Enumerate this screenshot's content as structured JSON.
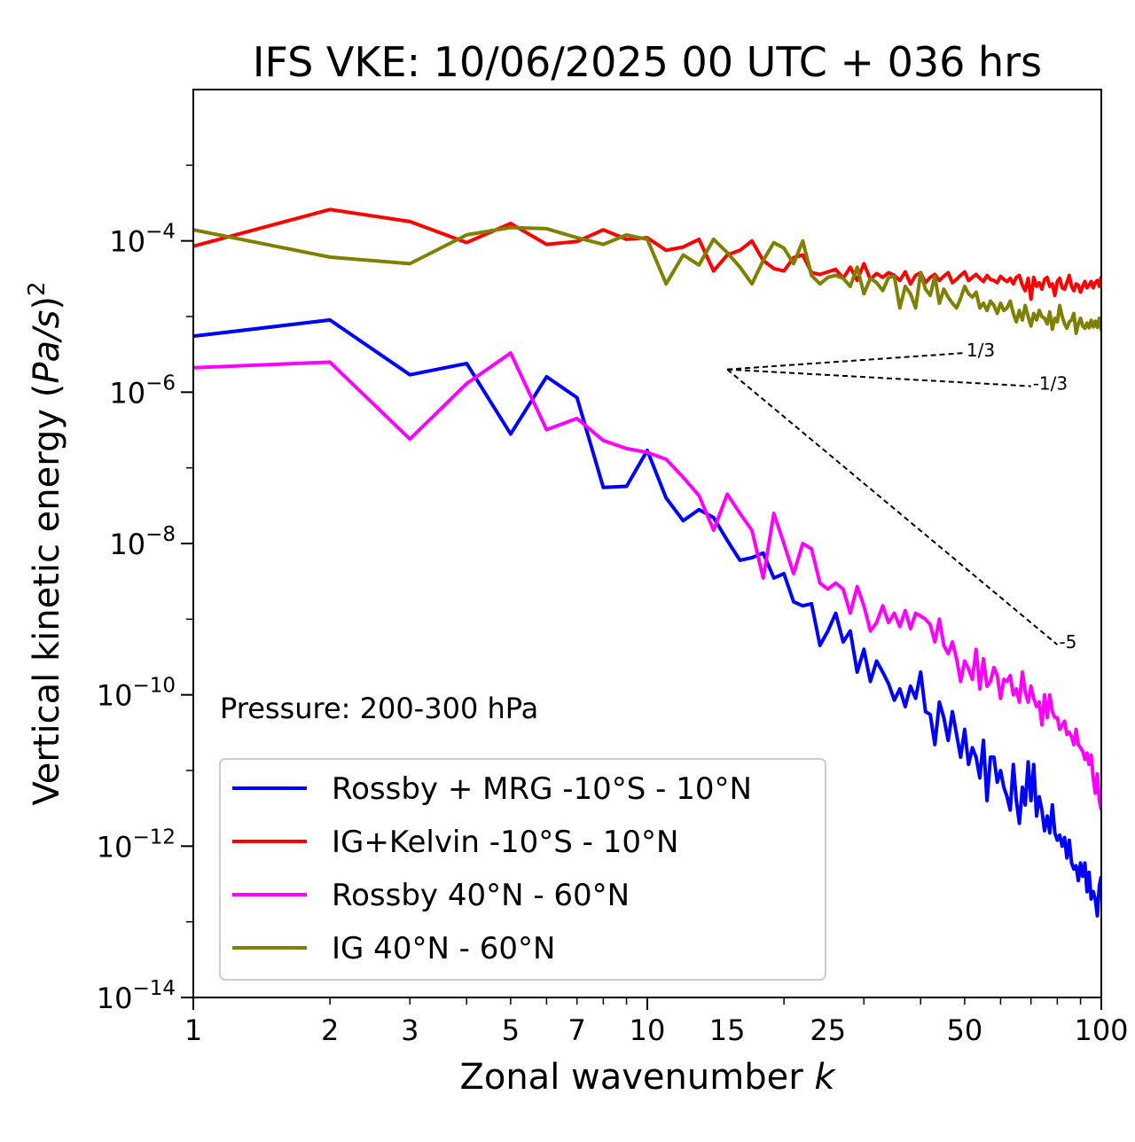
{
  "chart_data": {
    "type": "line",
    "title": "IFS VKE: 10/06/2025 00 UTC + 036 hrs",
    "xlabel_text": "Zonal wavenumber ",
    "xlabel_var": "k",
    "ylabel_text": "Vertical kinetic energy (",
    "ylabel_var": "Pa/s",
    "ylabel_close": ")",
    "ylabel_exp": "2",
    "x_scale": "log",
    "y_scale": "log",
    "xlim": [
      1,
      100
    ],
    "ylim": [
      1e-14,
      0.01
    ],
    "x_ticks": [
      {
        "value": 1,
        "label": "1"
      },
      {
        "value": 2,
        "label": "2"
      },
      {
        "value": 3,
        "label": "3"
      },
      {
        "value": 5,
        "label": "5"
      },
      {
        "value": 7,
        "label": "7"
      },
      {
        "value": 10,
        "label": "10"
      },
      {
        "value": 15,
        "label": "15"
      },
      {
        "value": 25,
        "label": "25"
      },
      {
        "value": 50,
        "label": "50"
      },
      {
        "value": 100,
        "label": "100"
      }
    ],
    "y_ticks": [
      {
        "exponent": -4,
        "base": "10",
        "exp": "−4"
      },
      {
        "exponent": -6,
        "base": "10",
        "exp": "−6"
      },
      {
        "exponent": -8,
        "base": "10",
        "exp": "−8"
      },
      {
        "exponent": -10,
        "base": "10",
        "exp": "−10"
      },
      {
        "exponent": -12,
        "base": "10",
        "exp": "−12"
      },
      {
        "exponent": -14,
        "base": "10",
        "exp": "−14"
      }
    ],
    "annotation": "Pressure: 200-300 hPa",
    "legend_position": "lower-left",
    "grid": false,
    "reference_slopes": [
      {
        "label": "1/3",
        "start": [
          15,
          2e-06
        ],
        "end": [
          50,
          3.3e-06
        ]
      },
      {
        "label": "-1/3",
        "start": [
          15,
          2e-06
        ],
        "end": [
          70,
          1.2e-06
        ]
      },
      {
        "label": "-5",
        "start": [
          15,
          2e-06
        ],
        "end": [
          80,
          4.6e-10
        ]
      }
    ],
    "series": [
      {
        "name": "Rossby + MRG -10°S - 10°N",
        "color": "#0000ff",
        "x": [
          1,
          2,
          3,
          4,
          5,
          6,
          7,
          8,
          9,
          10,
          11,
          12,
          13,
          14,
          15,
          16,
          17,
          18,
          19,
          20,
          21,
          22,
          23,
          24,
          25,
          26,
          27,
          28,
          29,
          30,
          31,
          32,
          33,
          34,
          35,
          36,
          37,
          38,
          39,
          40,
          41,
          42,
          43,
          44,
          45,
          46,
          47,
          48,
          49,
          50,
          51,
          52,
          53,
          54,
          55,
          56,
          57,
          58,
          59,
          60,
          61,
          62,
          63,
          64,
          65,
          66,
          67,
          68,
          69,
          70,
          71,
          72,
          73,
          74,
          75,
          76,
          77,
          78,
          79,
          80,
          81,
          82,
          83,
          84,
          85,
          86,
          87,
          88,
          89,
          90,
          91,
          92,
          93,
          94,
          95,
          96,
          97,
          98,
          99,
          100
        ],
        "y": [
          5.5e-06,
          9e-06,
          1.7e-06,
          2.4e-06,
          2.8e-07,
          1.6e-06,
          8.5e-07,
          5.5e-08,
          5.7e-08,
          1.7e-07,
          4e-08,
          2e-08,
          2.8e-08,
          2.2e-08,
          1.1e-08,
          6e-09,
          6.5e-09,
          7.5e-09,
          3.5e-09,
          4e-09,
          1.7e-09,
          1.5e-09,
          1.6e-09,
          4.5e-10,
          7e-10,
          1.2e-09,
          5e-10,
          7e-10,
          2e-10,
          4e-10,
          1.5e-10,
          2.8e-10,
          2e-10,
          1.4e-10,
          8.5e-11,
          1.2e-10,
          7e-11,
          1.3e-10,
          9e-11,
          2e-10,
          6e-11,
          5.5e-11,
          2.2e-11,
          8e-11,
          5e-11,
          2.5e-11,
          6e-11,
          3e-11,
          1.5e-11,
          3.5e-11,
          1.2e-11,
          2e-11,
          1.5e-11,
          8e-12,
          2.5e-11,
          4e-12,
          1.5e-11,
          1.5e-11,
          7e-12,
          1e-11,
          6e-12,
          4.5e-12,
          3e-12,
          1.2e-11,
          4e-12,
          2e-12,
          6e-12,
          3.5e-12,
          1.3e-11,
          4e-12,
          1.2e-11,
          2.5e-12,
          4.5e-12,
          3e-12,
          1.6e-12,
          2.5e-12,
          1.5e-12,
          3.5e-12,
          1.5e-12,
          1.2e-12,
          1.4e-12,
          1e-12,
          1.3e-12,
          7e-13,
          1.2e-12,
          6e-13,
          5e-13,
          5.5e-13,
          3.5e-13,
          6e-13,
          4e-13,
          6e-13,
          2.5e-13,
          4.5e-13,
          2e-13,
          2.5e-13,
          2e-13,
          1.2e-13,
          3e-13,
          4e-13
        ]
      },
      {
        "name": "IG+Kelvin -10°S - 10°N",
        "color": "#ff0000",
        "x": [
          1,
          2,
          3,
          4,
          5,
          6,
          7,
          8,
          9,
          10,
          11,
          12,
          13,
          14,
          15,
          16,
          17,
          18,
          19,
          20,
          21,
          22,
          23,
          24,
          25,
          26,
          27,
          28,
          29,
          30,
          31,
          32,
          33,
          34,
          35,
          36,
          37,
          38,
          39,
          40,
          41,
          42,
          43,
          44,
          45,
          46,
          47,
          48,
          49,
          50,
          51,
          52,
          53,
          54,
          55,
          56,
          57,
          58,
          59,
          60,
          61,
          62,
          63,
          64,
          65,
          66,
          67,
          68,
          69,
          70,
          71,
          72,
          73,
          74,
          75,
          76,
          77,
          78,
          79,
          80,
          81,
          82,
          83,
          84,
          85,
          86,
          87,
          88,
          89,
          90,
          91,
          92,
          93,
          94,
          95,
          96,
          97,
          98,
          99,
          100
        ],
        "y": [
          8.5e-05,
          0.00026,
          0.00018,
          9.5e-05,
          0.00017,
          9e-05,
          9.8e-05,
          0.00014,
          0.000105,
          0.00011,
          7.5e-05,
          8.3e-05,
          0.000105,
          4e-05,
          6.5e-05,
          7.5e-05,
          0.0001,
          5.5e-05,
          4.3e-05,
          4e-05,
          6e-05,
          6.5e-05,
          3.8e-05,
          3.6e-05,
          3.9e-05,
          4.2e-05,
          3.2e-05,
          4.5e-05,
          3e-05,
          5e-05,
          3.1e-05,
          3.7e-05,
          3.3e-05,
          3.8e-05,
          3.5e-05,
          3e-05,
          3.9e-05,
          2.7e-05,
          3.5e-05,
          3.8e-05,
          2.8e-05,
          3.3e-05,
          3.6e-05,
          3e-05,
          3.4e-05,
          3.8e-05,
          2.8e-05,
          3.1e-05,
          3.5e-05,
          3.9e-05,
          3e-05,
          3.3e-05,
          3.6e-05,
          3.2e-05,
          2.9e-05,
          3.5e-05,
          3.1e-05,
          3e-05,
          2.8e-05,
          3.4e-05,
          3.1e-05,
          2.9e-05,
          3.2e-05,
          2.7e-05,
          3.3e-05,
          3.5e-05,
          2.6e-05,
          2.2e-05,
          3.2e-05,
          1.7e-05,
          3.3e-05,
          2.5e-05,
          2.8e-05,
          2.3e-05,
          3.1e-05,
          3.3e-05,
          2.5e-05,
          2.7e-05,
          1.9e-05,
          2.9e-05,
          3.2e-05,
          2.4e-05,
          2.3e-05,
          2.8e-05,
          3.5e-05,
          2.5e-05,
          2.2e-05,
          2.7e-05,
          2.6e-05,
          2.1e-05,
          2.5e-05,
          2.9e-05,
          2.4e-05,
          2.6e-05,
          2.9e-05,
          2.4e-05,
          2.8e-05,
          3e-05,
          2.5e-05,
          3.4e-05
        ]
      },
      {
        "name": "Rossby 40°N - 60°N",
        "color": "#ff00ff",
        "x": [
          1,
          2,
          3,
          4,
          5,
          6,
          7,
          8,
          9,
          10,
          11,
          12,
          13,
          14,
          15,
          16,
          17,
          18,
          19,
          20,
          21,
          22,
          23,
          24,
          25,
          26,
          27,
          28,
          29,
          30,
          31,
          32,
          33,
          34,
          35,
          36,
          37,
          38,
          39,
          40,
          41,
          42,
          43,
          44,
          45,
          46,
          47,
          48,
          49,
          50,
          51,
          52,
          53,
          54,
          55,
          56,
          57,
          58,
          59,
          60,
          61,
          62,
          63,
          64,
          65,
          66,
          67,
          68,
          69,
          70,
          71,
          72,
          73,
          74,
          75,
          76,
          77,
          78,
          79,
          80,
          81,
          82,
          83,
          84,
          85,
          86,
          87,
          88,
          89,
          90,
          91,
          92,
          93,
          94,
          95,
          96,
          97,
          98,
          99,
          100
        ],
        "y": [
          2.1e-06,
          2.5e-06,
          2.4e-07,
          1.3e-06,
          3.3e-06,
          3.2e-07,
          4.5e-07,
          2.3e-07,
          1.8e-07,
          1.6e-07,
          1.3e-07,
          7.5e-08,
          4.3e-08,
          1.5e-08,
          4.5e-08,
          2.5e-08,
          1.5e-08,
          3.5e-09,
          2.5e-08,
          1e-08,
          4e-09,
          1e-08,
          8.5e-09,
          3e-09,
          2.5e-09,
          3e-09,
          2.5e-09,
          1.2e-09,
          2.7e-09,
          1.5e-09,
          7e-10,
          9e-10,
          1.5e-09,
          9e-10,
          1.2e-09,
          8e-10,
          1.3e-09,
          7.5e-10,
          1.2e-09,
          1.1e-09,
          1e-09,
          8.5e-10,
          5e-10,
          1e-09,
          4.5e-10,
          3.5e-10,
          5e-10,
          3e-10,
          1.5e-10,
          2.8e-10,
          2.2e-10,
          1.6e-10,
          4e-10,
          1.2e-10,
          3e-10,
          1.3e-10,
          1.5e-10,
          2.3e-10,
          1.8e-10,
          9e-11,
          1.6e-10,
          1.5e-10,
          1.8e-10,
          1e-10,
          1.2e-10,
          8e-11,
          2e-10,
          1.1e-10,
          8e-11,
          1.3e-10,
          9e-11,
          7e-11,
          8e-11,
          4e-11,
          1e-10,
          5e-11,
          1e-10,
          6e-11,
          5e-11,
          5e-11,
          3.5e-11,
          4e-11,
          4.5e-11,
          3e-11,
          3.2e-11,
          2.8e-11,
          2.2e-11,
          3.5e-11,
          2.2e-11,
          2e-11,
          1.8e-11,
          1.4e-11,
          1.7e-11,
          1.2e-11,
          1.6e-11,
          8e-12,
          5e-12,
          9e-12,
          4e-12,
          3e-12
        ]
      },
      {
        "name": "IG 40°N - 60°N",
        "color": "#808000",
        "x": [
          1,
          2,
          3,
          4,
          5,
          6,
          7,
          8,
          9,
          10,
          11,
          12,
          13,
          14,
          15,
          16,
          17,
          18,
          19,
          20,
          21,
          22,
          23,
          24,
          25,
          26,
          27,
          28,
          29,
          30,
          31,
          32,
          33,
          34,
          35,
          36,
          37,
          38,
          39,
          40,
          41,
          42,
          43,
          44,
          45,
          46,
          47,
          48,
          49,
          50,
          51,
          52,
          53,
          54,
          55,
          56,
          57,
          58,
          59,
          60,
          61,
          62,
          63,
          64,
          65,
          66,
          67,
          68,
          69,
          70,
          71,
          72,
          73,
          74,
          75,
          76,
          77,
          78,
          79,
          80,
          81,
          82,
          83,
          84,
          85,
          86,
          87,
          88,
          89,
          90,
          91,
          92,
          93,
          94,
          95,
          96,
          97,
          98,
          99,
          100
        ],
        "y": [
          0.00014,
          6.1e-05,
          5e-05,
          0.00012,
          0.00015,
          0.000145,
          0.00011,
          9e-05,
          0.00012,
          0.000105,
          2.7e-05,
          6.5e-05,
          4.8e-05,
          0.000105,
          7e-05,
          4.5e-05,
          2.7e-05,
          5.5e-05,
          9.5e-05,
          8e-05,
          5e-05,
          0.0001,
          3.5e-05,
          2.7e-05,
          3.3e-05,
          3.5e-05,
          3.2e-05,
          2.5e-05,
          4.5e-05,
          2e-05,
          3.2e-05,
          2.8e-05,
          2.2e-05,
          3.3e-05,
          3.4e-05,
          1.3e-05,
          2.5e-05,
          2e-05,
          1.3e-05,
          3.8e-05,
          2.3e-05,
          1.9e-05,
          3.4e-05,
          1.5e-05,
          2.3e-05,
          1.8e-05,
          1.5e-05,
          1.3e-05,
          1.75e-05,
          2.5e-05,
          2e-05,
          1.8e-05,
          2.1e-05,
          1.3e-05,
          1.5e-05,
          1.2e-05,
          1.6e-05,
          1.4e-05,
          1.1e-05,
          1.5e-05,
          1.2e-05,
          1.3e-05,
          1.6e-05,
          1.1e-05,
          8.5e-06,
          1.2e-05,
          9e-06,
          1.4e-05,
          1e-05,
          7.5e-06,
          1.1e-05,
          9e-06,
          1.2e-05,
          1e-05,
          9.5e-06,
          8e-06,
          1.15e-05,
          6.8e-06,
          9.5e-06,
          8.5e-06,
          1.4e-05,
          1e-05,
          8e-06,
          7e-06,
          8.5e-06,
          9e-06,
          1.1e-05,
          6e-06,
          8e-06,
          9.5e-06,
          7.5e-06,
          7e-06,
          8.2e-06,
          7.1e-06,
          8.9e-06,
          7.3e-06,
          8.7e-06,
          7.2e-06,
          9.5e-06,
          6.5e-06
        ]
      }
    ]
  }
}
